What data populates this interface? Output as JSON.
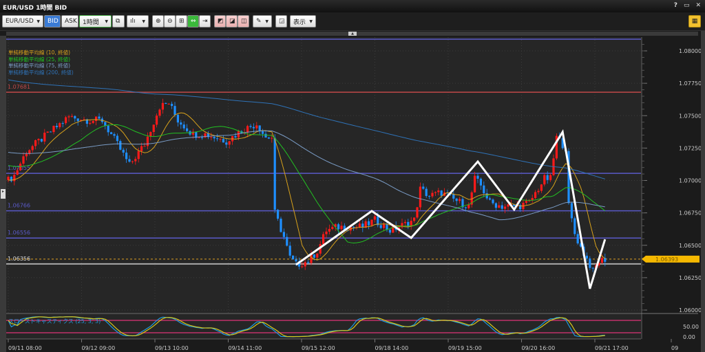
{
  "window": {
    "title": "EUR/USD 1時間 BID",
    "help": "?",
    "restore": "▭",
    "close": "✕"
  },
  "toolbar": {
    "symbol": "EUR/USD",
    "bid": "BID",
    "ask": "ASK",
    "timeframe": "1時間",
    "display": "表示",
    "active_side": "BID"
  },
  "legend": [
    {
      "label": "単純移動平均線 (10, 終値)",
      "color": "#d9a21b"
    },
    {
      "label": "単純移動平均線 (25, 終値)",
      "color": "#22c222"
    },
    {
      "label": "単純移動平均線 (75, 終値)",
      "color": "#7a9cc6"
    },
    {
      "label": "単純移動平均線 (200, 終値)",
      "color": "#2f73b8"
    }
  ],
  "price_axis": {
    "labels": [
      "1.08000",
      "1.07750",
      "1.07500",
      "1.07250",
      "1.07000",
      "1.06750",
      "1.06500",
      "1.06250",
      "1.06000"
    ],
    "current_price": "1.06393"
  },
  "hlines": [
    {
      "label": "1.07681",
      "color": "#c04848"
    },
    {
      "label": "1.07055",
      "color": "#5a5ac8"
    },
    {
      "label": "1.06766",
      "color": "#5a5ac8"
    },
    {
      "label": "1.06556",
      "color": "#5a5ac8"
    },
    {
      "label": "1.06356",
      "color": "#aaaaaa"
    }
  ],
  "time_axis": [
    "09/11 08:00",
    "09/12 09:00",
    "09/13 10:00",
    "09/14 11:00",
    "09/15 12:00",
    "09/18 14:00",
    "09/19 15:00",
    "09/20 16:00",
    "09/21 17:00",
    "09"
  ],
  "stochastic": {
    "label": "スローストキャスティクス (25, 3, 3)",
    "axis": [
      "50.00",
      "0.00"
    ],
    "k_color": "#1e9be0",
    "d_color": "#d8c81a",
    "band_color": "#c0306a"
  },
  "colors": {
    "up": "#ff1a1a",
    "down": "#1e8fff",
    "background": "#262626"
  },
  "chart_data": {
    "type": "candlestick",
    "symbol": "EUR/USD",
    "timeframe": "1H",
    "ylim": [
      1.06,
      1.0805
    ],
    "price_path": [
      [
        0,
        1.07003
      ],
      [
        2,
        1.0704
      ],
      [
        6,
        1.07225
      ],
      [
        13,
        1.07358
      ],
      [
        20,
        1.07491
      ],
      [
        27,
        1.07464
      ],
      [
        31,
        1.07464
      ],
      [
        36,
        1.07279
      ],
      [
        40,
        1.07119
      ],
      [
        45,
        1.07279
      ],
      [
        50,
        1.0757
      ],
      [
        53,
        1.07597
      ],
      [
        56,
        1.07464
      ],
      [
        61,
        1.07358
      ],
      [
        65,
        1.07358
      ],
      [
        72,
        1.07305
      ],
      [
        77,
        1.07385
      ],
      [
        82,
        1.07438
      ],
      [
        85,
        1.07332
      ],
      [
        87,
        1.07332
      ],
      [
        88,
        1.06748
      ],
      [
        91,
        1.06562
      ],
      [
        93,
        1.06403
      ],
      [
        95,
        1.0635
      ],
      [
        99,
        1.06377
      ],
      [
        102,
        1.06456
      ],
      [
        105,
        1.06615
      ],
      [
        109,
        1.06642
      ],
      [
        113,
        1.06642
      ],
      [
        117,
        1.06642
      ],
      [
        121,
        1.06695
      ],
      [
        126,
        1.06615
      ],
      [
        129,
        1.06642
      ],
      [
        134,
        1.06695
      ],
      [
        136,
        1.06934
      ],
      [
        139,
        1.06881
      ],
      [
        143,
        1.06907
      ],
      [
        147,
        1.06854
      ],
      [
        152,
        1.06801
      ],
      [
        154,
        1.07013
      ],
      [
        156,
        1.0696
      ],
      [
        159,
        1.06828
      ],
      [
        163,
        1.06801
      ],
      [
        168,
        1.06801
      ],
      [
        172,
        1.06828
      ],
      [
        177,
        1.07013
      ],
      [
        179,
        1.07013
      ],
      [
        181,
        1.07332
      ],
      [
        184,
        1.07252
      ],
      [
        185,
        1.06801
      ],
      [
        187,
        1.06589
      ],
      [
        189,
        1.06483
      ],
      [
        192,
        1.0635
      ],
      [
        193,
        1.06297
      ],
      [
        195,
        1.06377
      ],
      [
        197,
        1.06393
      ]
    ],
    "zigzag": [
      [
        95,
        1.0635
      ],
      [
        120,
        1.06764
      ],
      [
        133,
        1.06557
      ],
      [
        155,
        1.07146
      ],
      [
        167,
        1.06775
      ],
      [
        183,
        1.07374
      ],
      [
        192,
        1.06165
      ],
      [
        197,
        1.06546
      ]
    ]
  }
}
